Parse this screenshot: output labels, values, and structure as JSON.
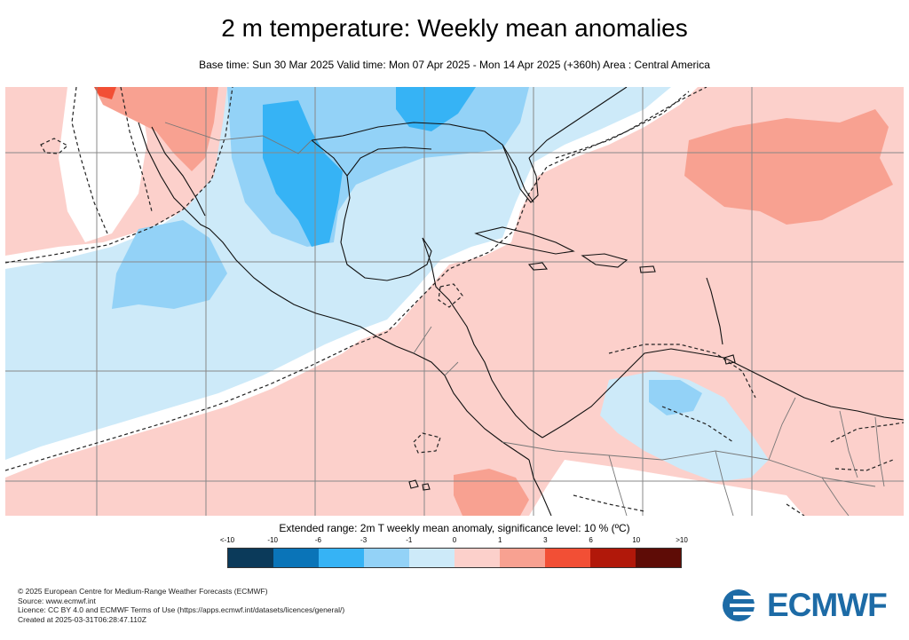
{
  "header": {
    "title": "2 m temperature: Weekly mean anomalies",
    "subtitle": "Base time: Sun 30 Mar 2025 Valid time: Mon 07 Apr 2025 - Mon 14 Apr 2025 (+360h) Area : Central America"
  },
  "legend": {
    "caption": "Extended range: 2m T weekly mean anomaly, significance level: 10 % (ºC)",
    "labels": [
      "<-10",
      "-10",
      "-6",
      "-3",
      "-1",
      "0",
      "1",
      "3",
      "6",
      "10",
      ">10"
    ],
    "colors": [
      "#0b3a5a",
      "#0a74b8",
      "#36b3f5",
      "#93d2f7",
      "#cdeaf9",
      "#fcd0cb",
      "#f8a191",
      "#f24f35",
      "#b1180a",
      "#5e0c06"
    ]
  },
  "map": {
    "area": "Central America",
    "colors": {
      "ocean_warm": "#fcd0cb",
      "neutral": "#ffffff",
      "cool_1": "#cdeaf9",
      "cool_3": "#93d2f7",
      "cool_6": "#36b3f5",
      "warm_3": "#f8a191",
      "warm_6": "#f24f35",
      "coast": "#111111",
      "border": "#777777",
      "grid": "#888888"
    }
  },
  "credits": {
    "line1": "© 2025 European Centre for Medium-Range Weather Forecasts (ECMWF)",
    "line2": "Source: www.ecmwf.int",
    "line3": "Licence: CC BY 4.0 and ECMWF Terms of Use (https://apps.ecmwf.int/datasets/licences/general/)",
    "line4": "Created at 2025-03-31T06:28:47.110Z"
  },
  "logo": {
    "text": "ECMWF",
    "color": "#1d6ba6",
    "icon": "ecmwf-logo-icon"
  }
}
